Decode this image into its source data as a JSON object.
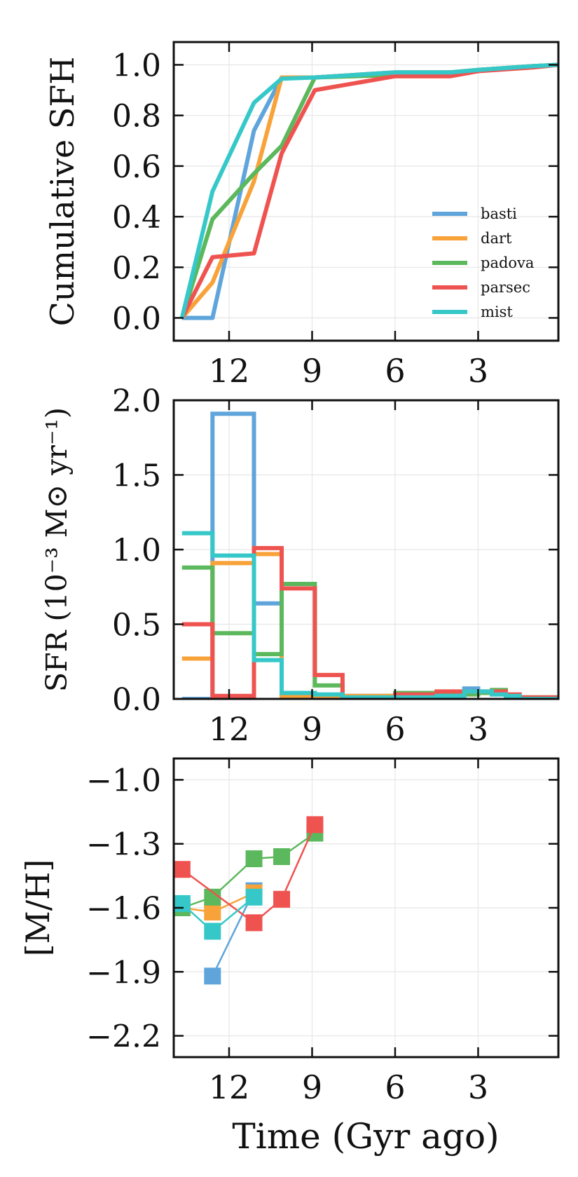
{
  "figure": {
    "xlabel": "Time (Gyr ago)",
    "colors": {
      "basti": "#5fa5db",
      "dart": "#f8a23a",
      "padova": "#5cb85c",
      "parsec": "#ef5350",
      "mist": "#36c8c8"
    }
  },
  "chart_data": [
    {
      "type": "line",
      "title": "",
      "ylabel": "Cumulative SFH",
      "xlabel": "",
      "xlim": [
        14,
        0.1
      ],
      "ylim": [
        -0.09,
        1.09
      ],
      "xticks": [
        12,
        9,
        6,
        3
      ],
      "xtick_labels": [
        "12",
        "9",
        "6",
        "3"
      ],
      "yticks": [
        0.0,
        0.2,
        0.4,
        0.6,
        0.8,
        1.0
      ],
      "ytick_labels": [
        "0.0",
        "0.2",
        "0.4",
        "0.6",
        "0.8",
        "1.0"
      ],
      "grid": true,
      "legend": "bottom-right",
      "series": [
        {
          "name": "basti",
          "x": [
            13.7,
            12.6,
            11.1,
            10.1,
            8.9,
            6,
            4,
            3,
            1,
            0.1
          ],
          "y": [
            0.0,
            0.0,
            0.74,
            0.95,
            0.95,
            0.97,
            0.97,
            0.98,
            0.995,
            1.0
          ]
        },
        {
          "name": "dart",
          "x": [
            13.7,
            12.6,
            11.1,
            10.1,
            8.9,
            6,
            4,
            3,
            1,
            0.1
          ],
          "y": [
            0.0,
            0.14,
            0.54,
            0.95,
            0.95,
            0.97,
            0.97,
            0.98,
            0.995,
            1.0
          ]
        },
        {
          "name": "padova",
          "x": [
            13.7,
            12.6,
            11.1,
            10.1,
            8.9,
            6,
            4,
            3,
            1,
            0.1
          ],
          "y": [
            0.0,
            0.39,
            0.57,
            0.68,
            0.95,
            0.96,
            0.97,
            0.98,
            0.995,
            1.0
          ]
        },
        {
          "name": "parsec",
          "x": [
            13.7,
            12.6,
            11.1,
            10.1,
            8.9,
            6,
            4,
            3,
            1,
            0.1
          ],
          "y": [
            0.0,
            0.24,
            0.255,
            0.65,
            0.9,
            0.955,
            0.955,
            0.975,
            0.99,
            1.0
          ]
        },
        {
          "name": "mist",
          "x": [
            13.7,
            12.6,
            11.1,
            10.1,
            8.9,
            6,
            4,
            3,
            1,
            0.1
          ],
          "y": [
            0.0,
            0.5,
            0.85,
            0.945,
            0.95,
            0.97,
            0.97,
            0.98,
            0.995,
            1.0
          ]
        }
      ]
    },
    {
      "type": "line",
      "title": "",
      "ylabel": "SFR (10⁻³ M⊙ yr⁻¹)",
      "xlabel": "",
      "xlim": [
        14,
        0.1
      ],
      "ylim": [
        0.0,
        2.0
      ],
      "xticks": [
        12,
        9,
        6,
        3
      ],
      "xtick_labels": [
        "12",
        "9",
        "6",
        "3"
      ],
      "yticks": [
        0.0,
        0.5,
        1.0,
        1.5,
        2.0
      ],
      "ytick_labels": [
        "0.0",
        "0.5",
        "1.0",
        "1.5",
        "2.0"
      ],
      "grid": true,
      "drawstyle": "steps",
      "bin_edges": [
        13.7,
        12.6,
        11.1,
        10.1,
        8.9,
        7.9,
        6.0,
        4.5,
        3.5,
        3.0,
        2.5,
        2.0,
        1.5,
        0.1
      ],
      "series": [
        {
          "name": "basti",
          "values": [
            0.0,
            1.91,
            0.64,
            0.04,
            0.02,
            0.02,
            0.0,
            0.03,
            0.07,
            0.04,
            0.03,
            0.02,
            0.01
          ]
        },
        {
          "name": "dart",
          "values": [
            0.27,
            0.91,
            0.97,
            0.02,
            0.01,
            0.02,
            0.0,
            0.02,
            0.03,
            0.04,
            0.05,
            0.02,
            0.01
          ]
        },
        {
          "name": "padova",
          "values": [
            0.88,
            0.44,
            0.3,
            0.77,
            0.09,
            0.01,
            0.04,
            0.04,
            0.03,
            0.04,
            0.06,
            0.02,
            0.01
          ]
        },
        {
          "name": "parsec",
          "values": [
            0.5,
            0.02,
            1.01,
            0.74,
            0.16,
            0.0,
            0.03,
            0.05,
            0.05,
            0.05,
            0.05,
            0.03,
            0.01
          ]
        },
        {
          "name": "mist",
          "values": [
            1.11,
            0.96,
            0.26,
            0.04,
            0.03,
            0.01,
            0.01,
            0.02,
            0.05,
            0.05,
            0.03,
            0.02,
            0.0
          ]
        }
      ]
    },
    {
      "type": "line",
      "title": "",
      "ylabel": "[M/H]",
      "xlabel": "Time (Gyr ago)",
      "xlim": [
        14,
        0.1
      ],
      "ylim": [
        -2.3,
        -0.9
      ],
      "xticks": [
        12,
        9,
        6,
        3
      ],
      "xtick_labels": [
        "12",
        "9",
        "6",
        "3"
      ],
      "yticks": [
        -1.0,
        -1.3,
        -1.6,
        -1.9,
        -2.2
      ],
      "ytick_labels": [
        "−1.0",
        "−1.3",
        "−1.6",
        "−1.9",
        "−2.2"
      ],
      "grid": true,
      "marker": "square",
      "series": [
        {
          "name": "basti",
          "x": [
            12.6,
            11.1
          ],
          "y": [
            -1.92,
            -1.52
          ]
        },
        {
          "name": "dart",
          "x": [
            13.7,
            12.6,
            11.1
          ],
          "y": [
            -1.6,
            -1.62,
            -1.53
          ]
        },
        {
          "name": "padova",
          "x": [
            13.7,
            12.6,
            11.1,
            10.1,
            8.9
          ],
          "y": [
            -1.6,
            -1.55,
            -1.37,
            -1.36,
            -1.25
          ]
        },
        {
          "name": "parsec",
          "x": [
            13.7,
            11.1,
            10.1,
            8.9
          ],
          "y": [
            -1.42,
            -1.67,
            -1.56,
            -1.21
          ]
        },
        {
          "name": "mist",
          "x": [
            13.7,
            12.6,
            11.1
          ],
          "y": [
            -1.58,
            -1.71,
            -1.55
          ]
        }
      ]
    }
  ]
}
